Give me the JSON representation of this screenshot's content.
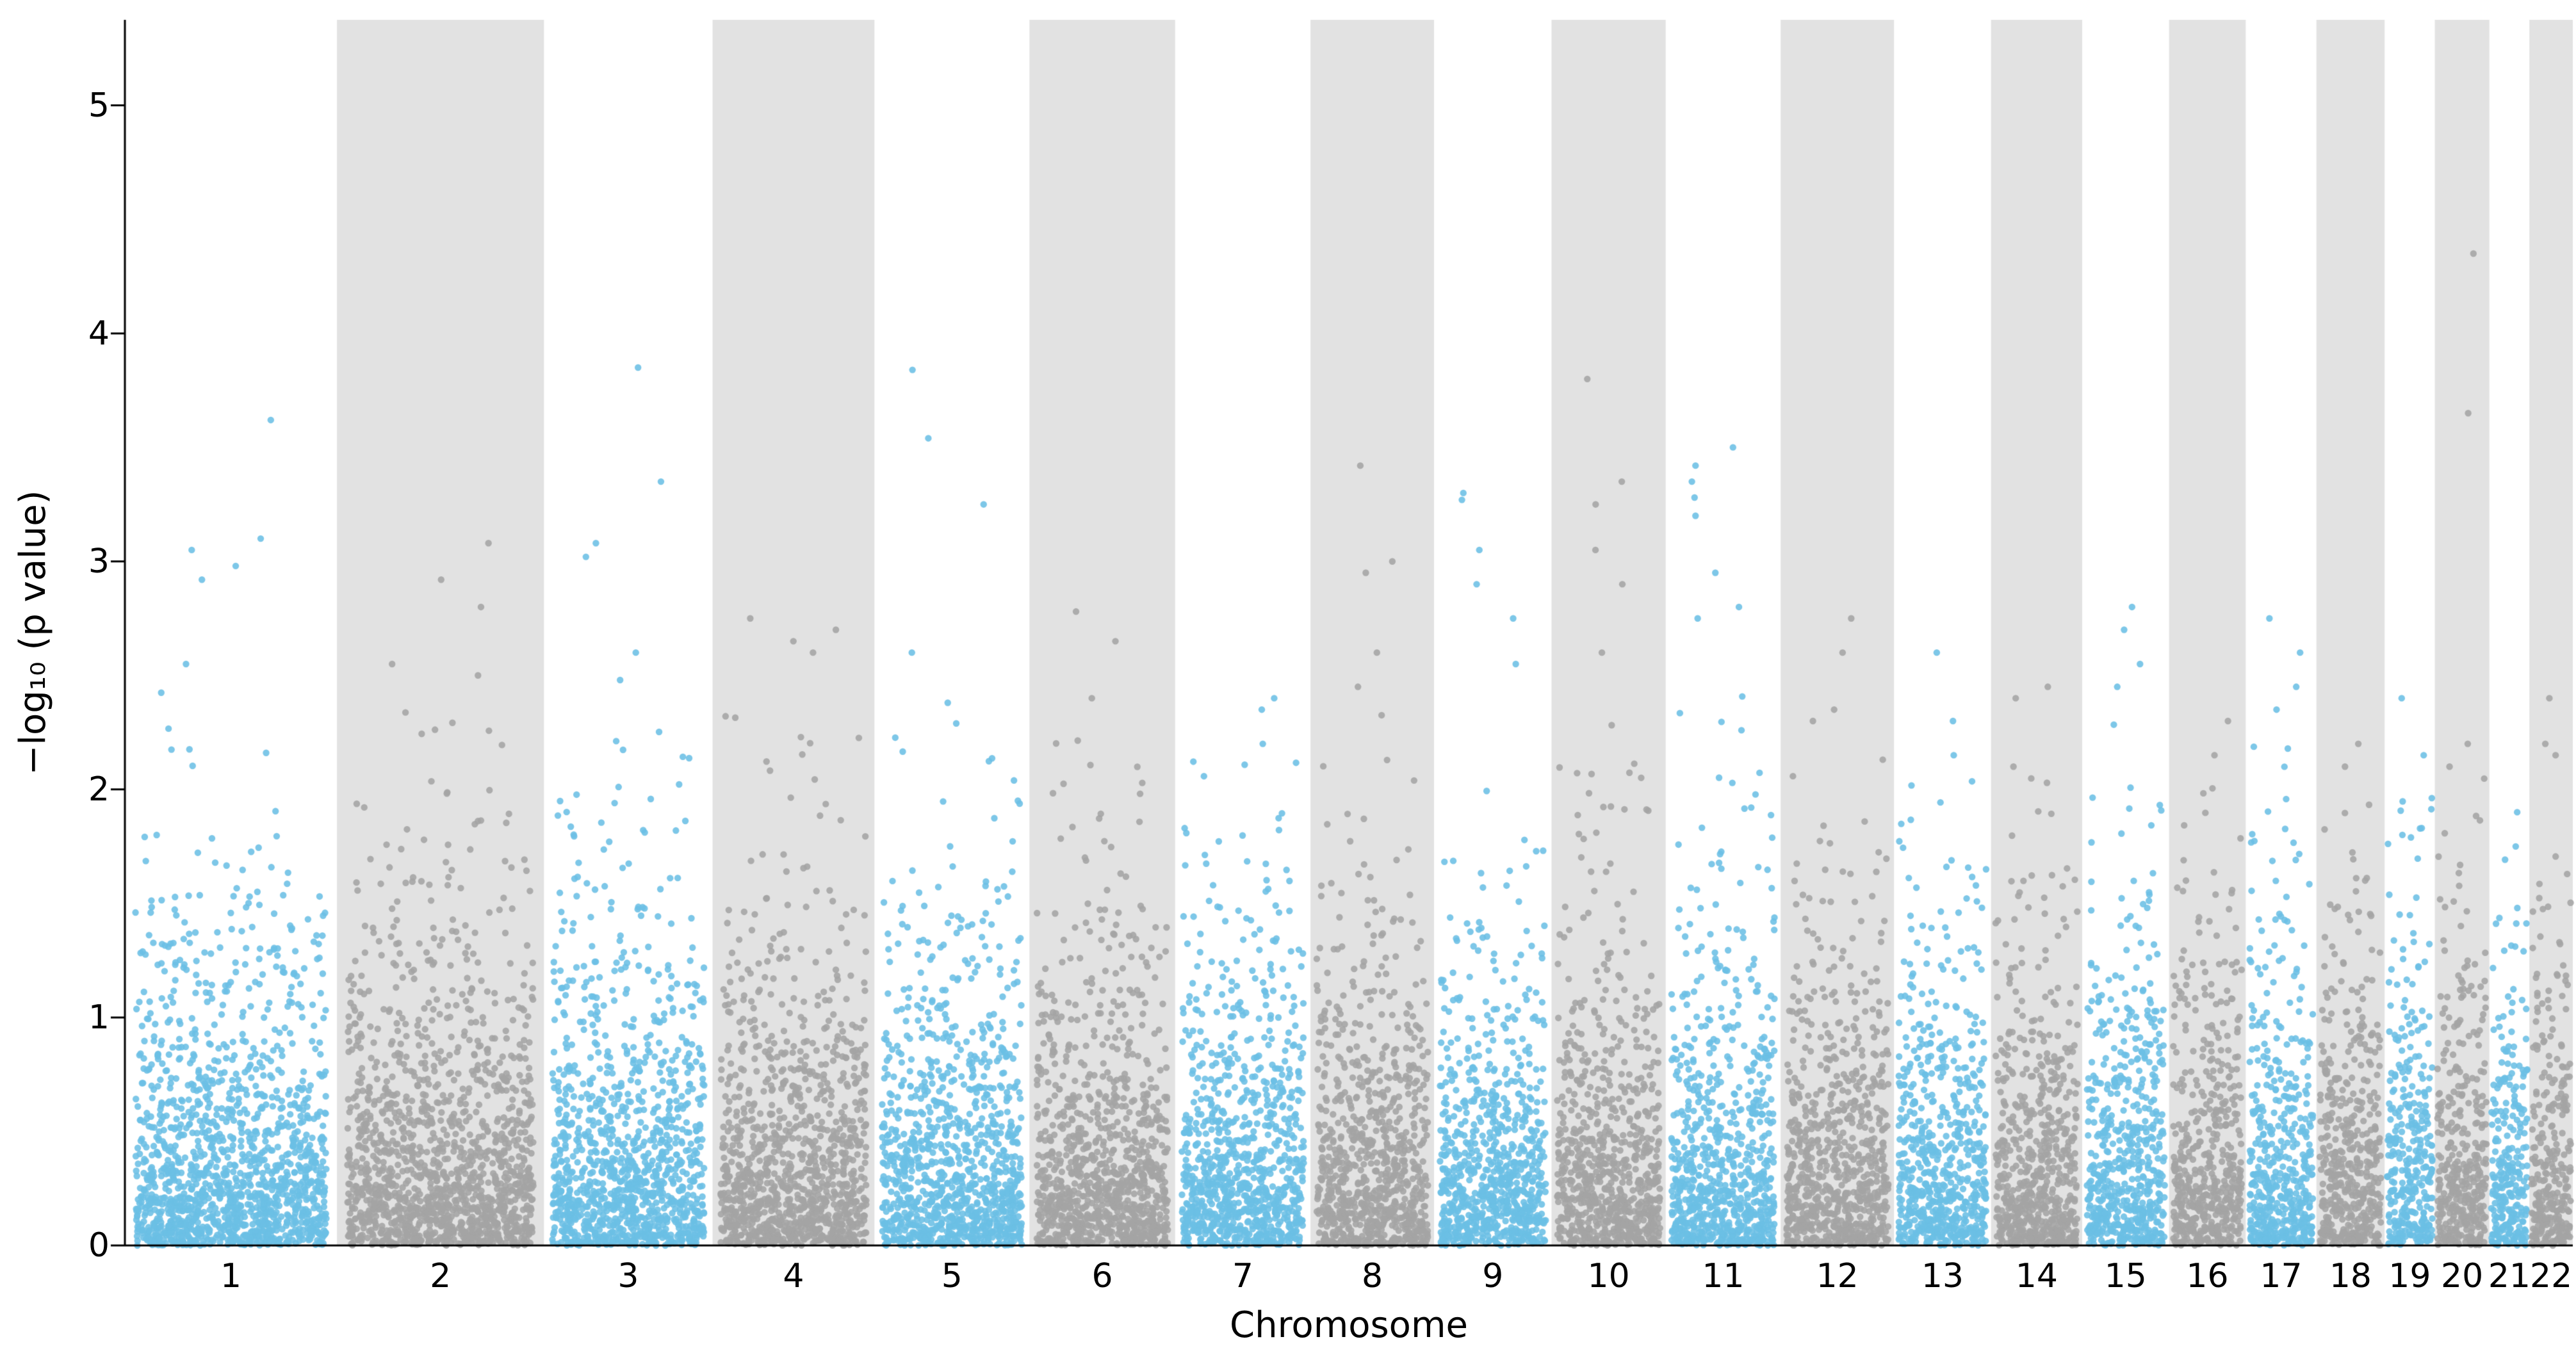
{
  "chart_data": {
    "type": "scatter",
    "subtype": "manhattan-plot",
    "title": "",
    "xlabel": "Chromosome",
    "ylabel": "-log10 (p value)",
    "ylabel_display": "−log₁₀ (p value)",
    "ylim": [
      0,
      5.375
    ],
    "yticks": [
      0,
      1,
      2,
      3,
      4,
      5
    ],
    "grid": false,
    "legend": "none",
    "odd_chrom_color": "#6bbfe5",
    "even_chrom_color": "#a4a4a4",
    "band_color": "#e2e2e2",
    "background_color": "#ffffff",
    "axis_color": "#000000",
    "point_radius": 5.2,
    "points_per_mb": 6,
    "seed": 42,
    "chromosomes": [
      {
        "label": "1",
        "length_mb": 249,
        "peaks": [
          3.62,
          3.1,
          3.05,
          2.98,
          2.92,
          2.55
        ],
        "bulk_max": 2.45
      },
      {
        "label": "2",
        "length_mb": 243,
        "peaks": [
          3.08,
          2.92,
          2.8,
          2.55,
          2.5
        ],
        "bulk_max": 2.45
      },
      {
        "label": "3",
        "length_mb": 198,
        "peaks": [
          3.85,
          3.35,
          3.08,
          3.02,
          2.6
        ],
        "bulk_max": 2.5
      },
      {
        "label": "4",
        "length_mb": 190,
        "peaks": [
          2.75,
          2.7,
          2.65,
          2.6
        ],
        "bulk_max": 2.35
      },
      {
        "label": "5",
        "length_mb": 182,
        "peaks": [
          3.84,
          3.54,
          3.25,
          2.6,
          2.38
        ],
        "bulk_max": 2.35
      },
      {
        "label": "6",
        "length_mb": 171,
        "peaks": [
          2.78,
          2.65,
          2.4
        ],
        "bulk_max": 2.3
      },
      {
        "label": "7",
        "length_mb": 159,
        "peaks": [
          2.4,
          2.35,
          2.2
        ],
        "bulk_max": 2.15
      },
      {
        "label": "8",
        "length_mb": 145,
        "peaks": [
          3.42,
          3.0,
          2.95,
          2.6,
          2.45
        ],
        "bulk_max": 2.35
      },
      {
        "label": "9",
        "length_mb": 138,
        "peaks": [
          3.3,
          3.27,
          3.05,
          2.9,
          2.75,
          2.55
        ],
        "bulk_max": 2.25
      },
      {
        "label": "10",
        "length_mb": 134,
        "peaks": [
          3.8,
          3.35,
          3.25,
          3.05,
          2.9,
          2.6
        ],
        "bulk_max": 2.35
      },
      {
        "label": "11",
        "length_mb": 135,
        "peaks": [
          3.5,
          3.42,
          3.35,
          3.28,
          3.2,
          2.95,
          2.8,
          2.75
        ],
        "bulk_max": 2.45
      },
      {
        "label": "12",
        "length_mb": 133,
        "peaks": [
          2.75,
          2.6,
          2.35,
          2.3
        ],
        "bulk_max": 2.25
      },
      {
        "label": "13",
        "length_mb": 114,
        "peaks": [
          2.6,
          2.3,
          2.15
        ],
        "bulk_max": 2.1
      },
      {
        "label": "14",
        "length_mb": 107,
        "peaks": [
          2.45,
          2.4,
          2.1
        ],
        "bulk_max": 2.15
      },
      {
        "label": "15",
        "length_mb": 102,
        "peaks": [
          2.8,
          2.7,
          2.55,
          2.45
        ],
        "bulk_max": 2.3
      },
      {
        "label": "16",
        "length_mb": 90,
        "peaks": [
          2.3,
          2.15
        ],
        "bulk_max": 2.05
      },
      {
        "label": "17",
        "length_mb": 83,
        "peaks": [
          2.75,
          2.6,
          2.45,
          2.35
        ],
        "bulk_max": 2.3
      },
      {
        "label": "18",
        "length_mb": 80,
        "peaks": [
          2.2,
          2.1
        ],
        "bulk_max": 2.0
      },
      {
        "label": "19",
        "length_mb": 59,
        "peaks": [
          2.4,
          2.15
        ],
        "bulk_max": 2.1
      },
      {
        "label": "20",
        "length_mb": 64,
        "peaks": [
          4.35,
          3.65,
          2.2,
          2.1
        ],
        "bulk_max": 2.05
      },
      {
        "label": "21",
        "length_mb": 47,
        "peaks": [
          1.9,
          1.75
        ],
        "bulk_max": 1.7
      },
      {
        "label": "22",
        "length_mb": 51,
        "peaks": [
          2.4,
          2.2,
          2.15
        ],
        "bulk_max": 2.05
      }
    ]
  }
}
